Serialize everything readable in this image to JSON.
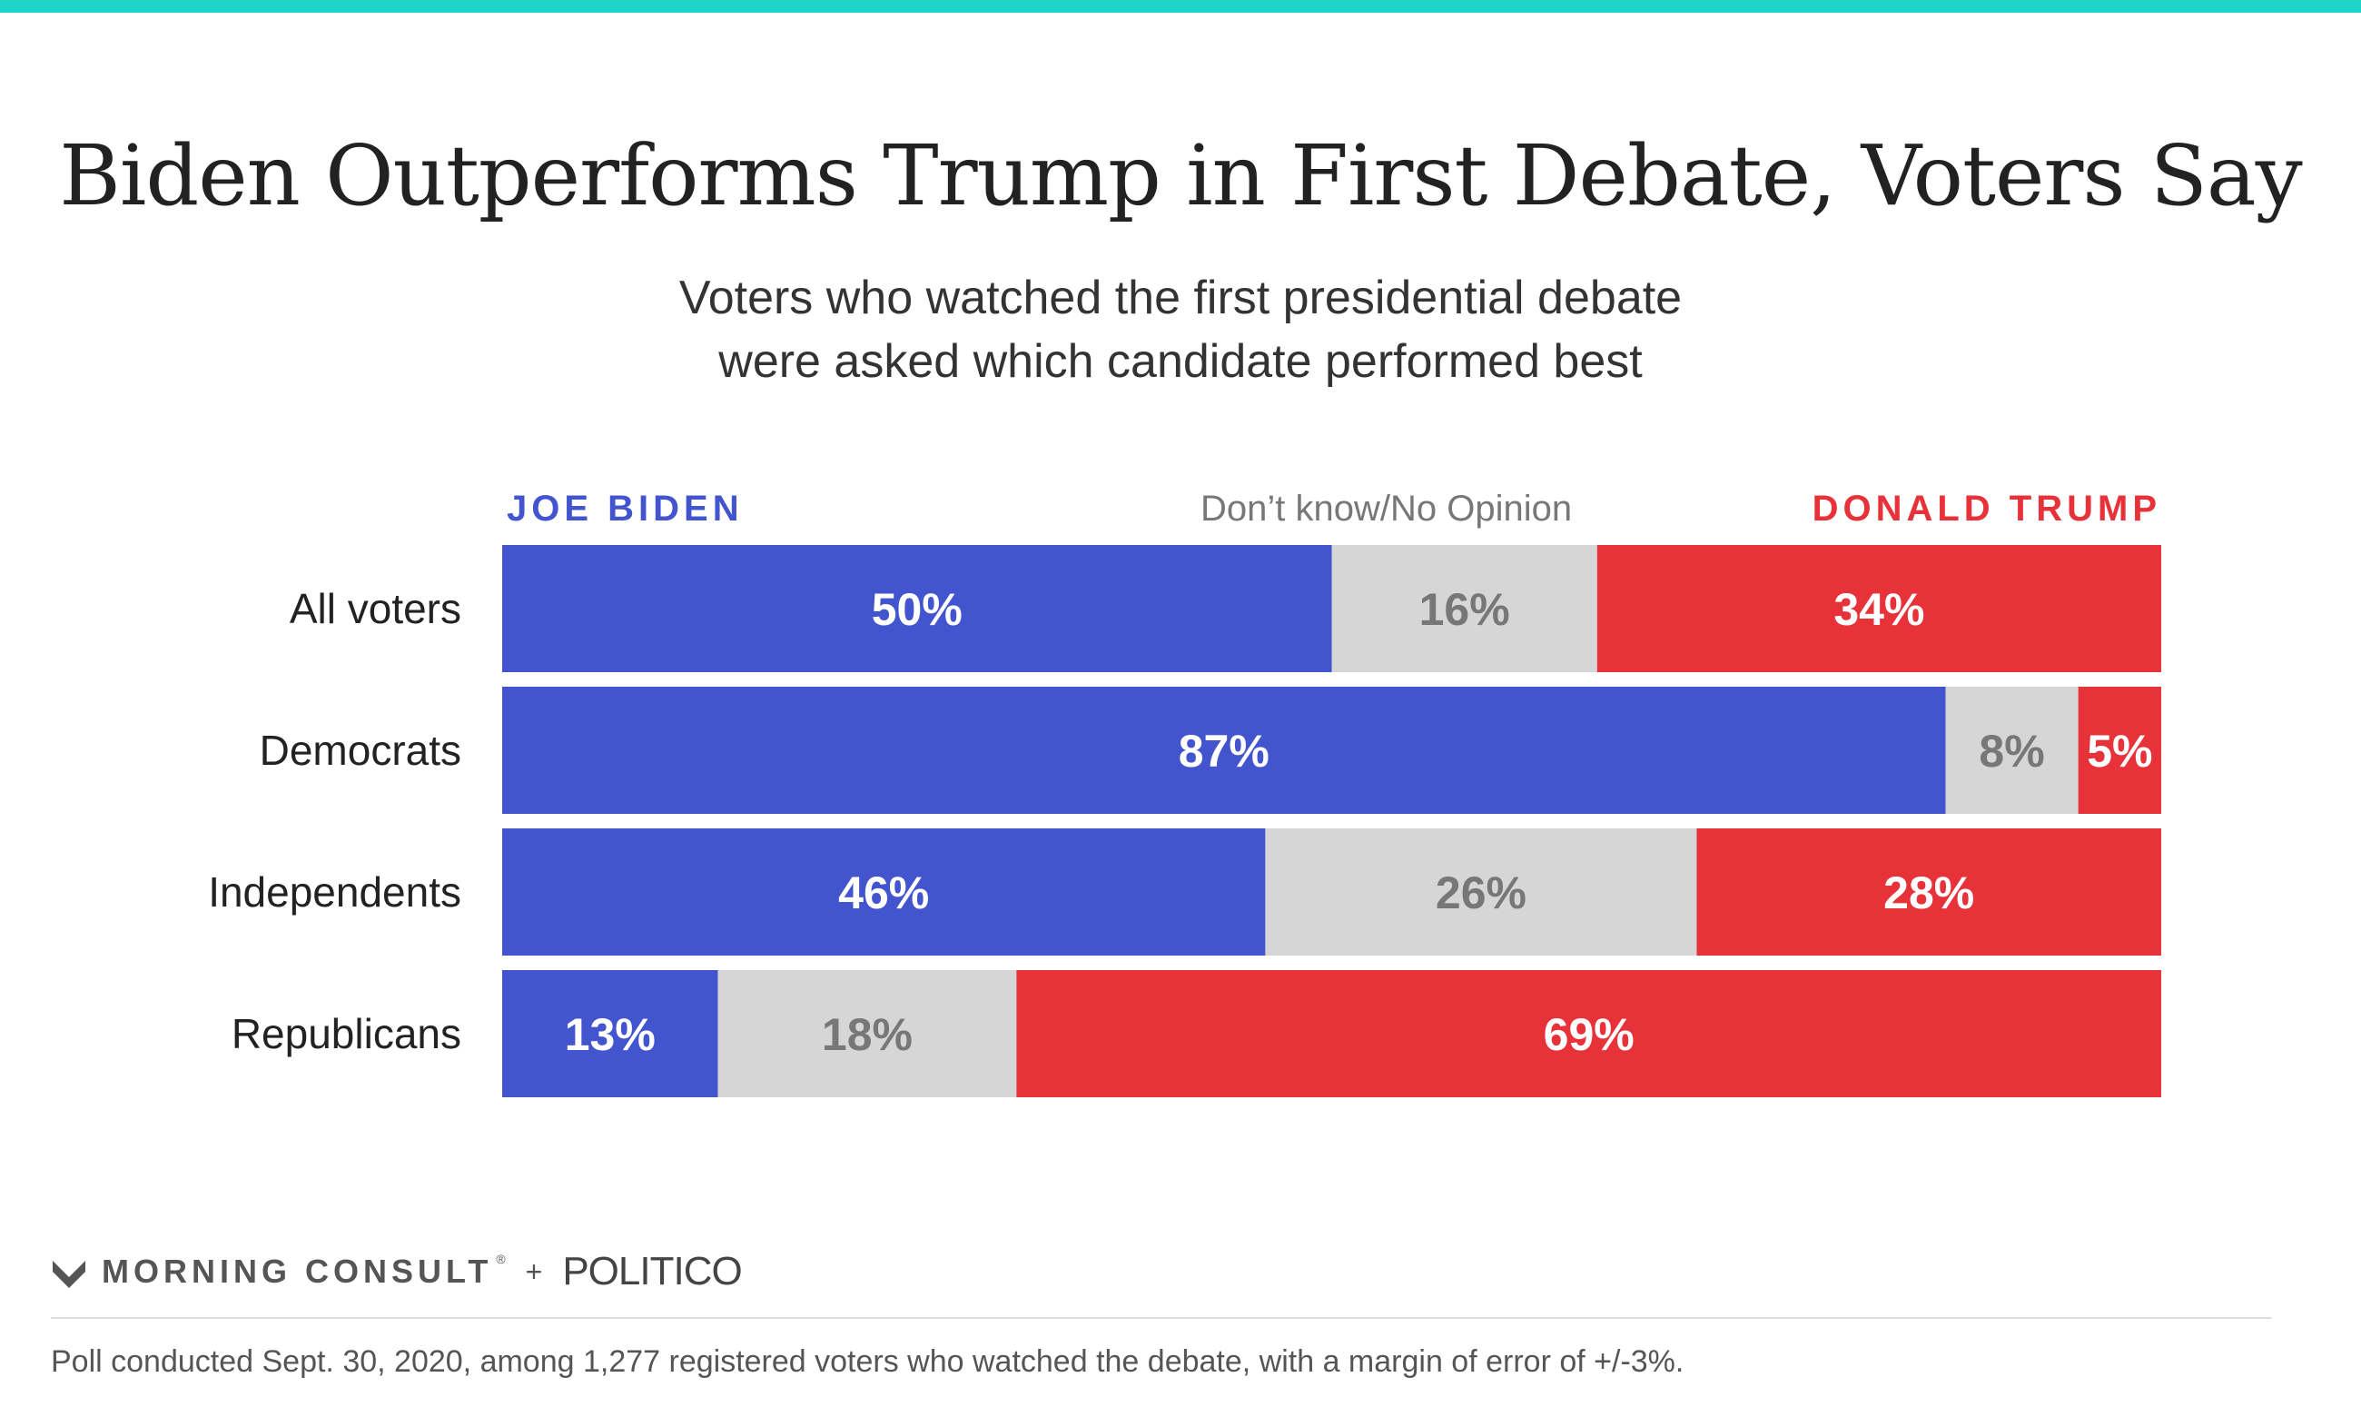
{
  "colors": {
    "biden": "#4355CE",
    "dont_know": "#D6D6D6",
    "trump": "#E8323A",
    "accent_bar": "#1ED3C8",
    "biden_text": "#ffffff",
    "dont_know_text": "#777777",
    "trump_text": "#ffffff"
  },
  "chart_data": {
    "type": "bar",
    "orientation": "horizontal",
    "stacked": true,
    "title": "Biden Outperforms Trump in First Debate, Voters Say",
    "subtitle_lines": [
      "Voters who watched the first presidential debate",
      "were asked which candidate performed best"
    ],
    "categories": [
      "All voters",
      "Democrats",
      "Independents",
      "Republicans"
    ],
    "series": [
      {
        "name": "JOE BIDEN",
        "key": "biden",
        "values": [
          50,
          87,
          46,
          13
        ]
      },
      {
        "name": "Don’t know/No Opinion",
        "key": "dont_know",
        "values": [
          16,
          8,
          26,
          18
        ]
      },
      {
        "name": "DONALD TRUMP",
        "key": "trump",
        "values": [
          34,
          5,
          28,
          69
        ]
      }
    ],
    "value_suffix": "%",
    "xlim": [
      0,
      100
    ]
  },
  "footer": {
    "brand_1": "MORNING CONSULT",
    "brand_1_mark": "®",
    "plus": "+",
    "brand_2": "POLITICO",
    "note": "Poll conducted Sept. 30, 2020, among 1,277 registered voters who watched the debate, with a margin of error of +/-3%."
  }
}
